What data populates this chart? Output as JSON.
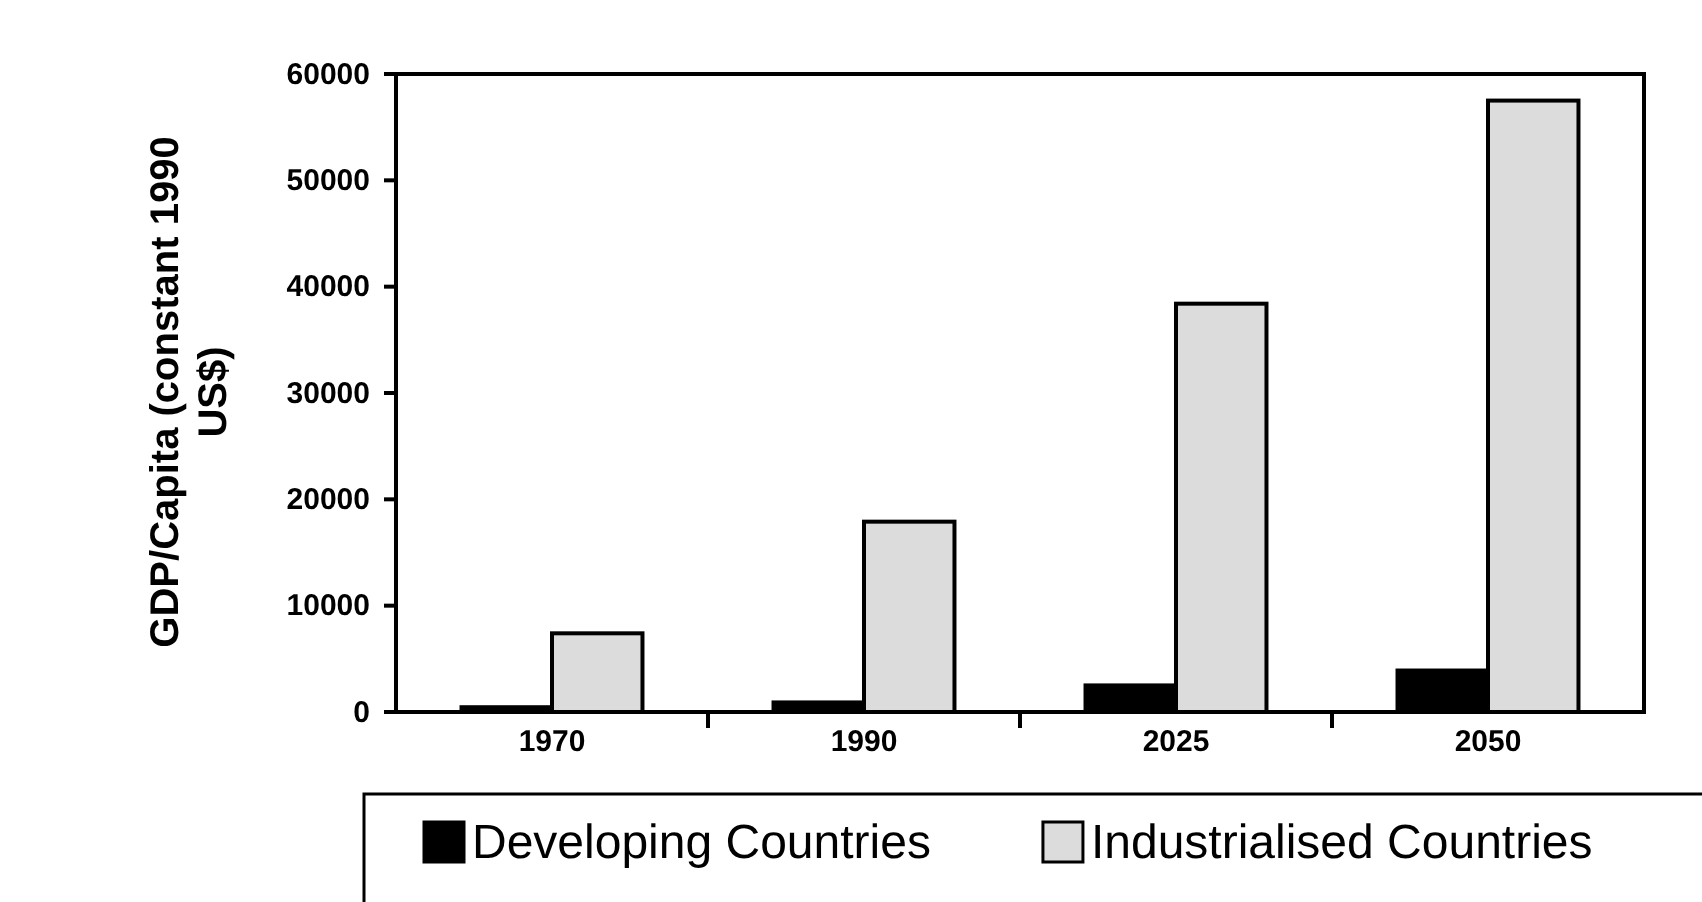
{
  "chart_data": {
    "type": "bar",
    "ylabel": "GDP/Capita (constant 1990 US$)",
    "categories": [
      "1970",
      "1990",
      "2025",
      "2050"
    ],
    "series": [
      {
        "name": "Developing Countries",
        "color": "#000000",
        "values": [
          450,
          900,
          2500,
          3900
        ]
      },
      {
        "name": "Industrialised Countries",
        "color": "#dcdcdc",
        "values": [
          7400,
          17900,
          38400,
          57500
        ]
      }
    ],
    "ylim": [
      0,
      60000
    ],
    "yticks": [
      0,
      10000,
      20000,
      30000,
      40000,
      50000,
      60000
    ],
    "grid": false,
    "legend": "bottom"
  }
}
